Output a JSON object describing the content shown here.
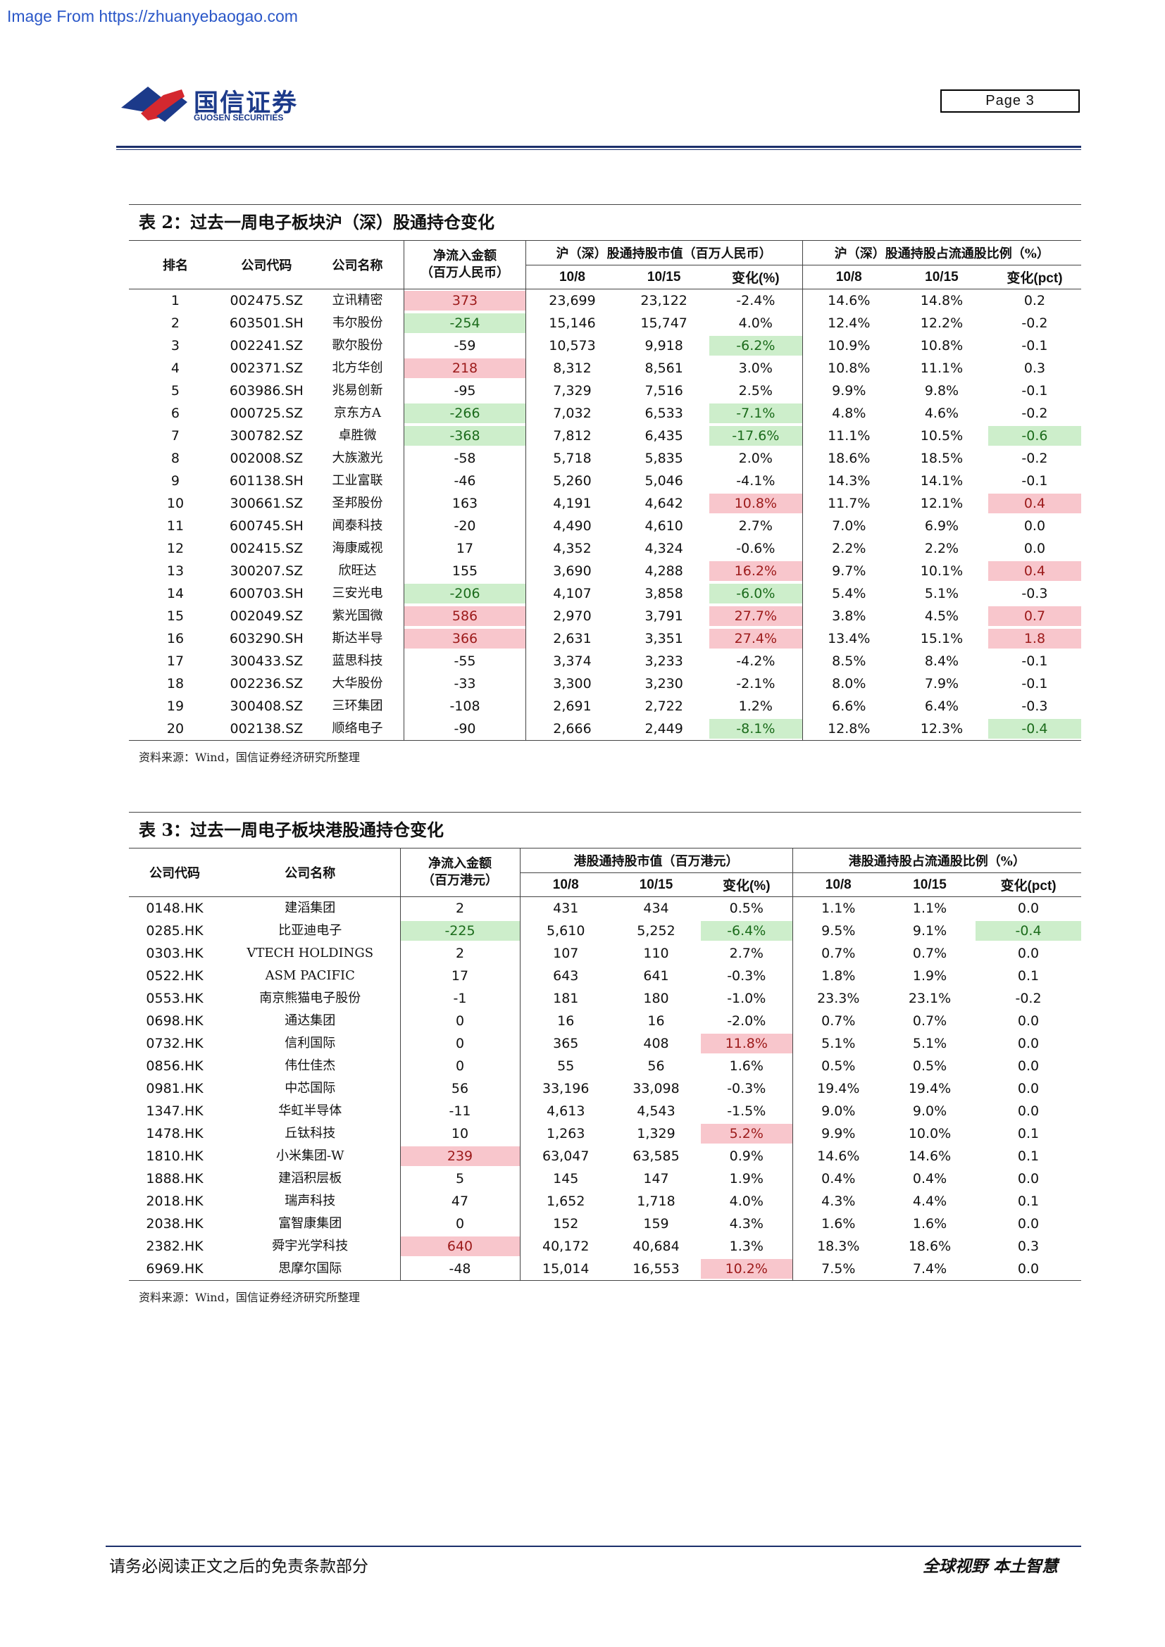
{
  "source_url": "Image From https://zhuanyebaogao.com",
  "brand": {
    "name_cn": "国信证券",
    "name_en": "GUOSEN SECURITIES"
  },
  "page_label": "Page  3",
  "table2": {
    "title": "表 2：过去一周电子板块沪（深）股通持仓变化",
    "headers": {
      "rank": "排名",
      "code": "公司代码",
      "name": "公司名称",
      "flow": "净流入金额\n（百万人民币）",
      "mv_group": "沪（深）股通持股市值（百万人民币）",
      "ratio_group": "沪（深）股通持股占流通股比例（%）",
      "d1": "10/8",
      "d2": "10/15",
      "chg_pct": "变化(%)",
      "chg_pct2": "变化(pct)"
    },
    "rows": [
      {
        "rank": "1",
        "code": "002475.SZ",
        "name": "立讯精密",
        "flow": "373",
        "mv1": "23,699",
        "mv2": "23,122",
        "mvchg": "-2.4%",
        "r1": "14.6%",
        "r2": "14.8%",
        "rchg": "0.2",
        "flow_hl": "pos",
        "mv_hl": "",
        "r_hl": ""
      },
      {
        "rank": "2",
        "code": "603501.SH",
        "name": "韦尔股份",
        "flow": "-254",
        "mv1": "15,146",
        "mv2": "15,747",
        "mvchg": "4.0%",
        "r1": "12.4%",
        "r2": "12.2%",
        "rchg": "-0.2",
        "flow_hl": "neg",
        "mv_hl": "",
        "r_hl": ""
      },
      {
        "rank": "3",
        "code": "002241.SZ",
        "name": "歌尔股份",
        "flow": "-59",
        "mv1": "10,573",
        "mv2": "9,918",
        "mvchg": "-6.2%",
        "r1": "10.9%",
        "r2": "10.8%",
        "rchg": "-0.1",
        "flow_hl": "",
        "mv_hl": "neg",
        "r_hl": ""
      },
      {
        "rank": "4",
        "code": "002371.SZ",
        "name": "北方华创",
        "flow": "218",
        "mv1": "8,312",
        "mv2": "8,561",
        "mvchg": "3.0%",
        "r1": "10.8%",
        "r2": "11.1%",
        "rchg": "0.3",
        "flow_hl": "pos",
        "mv_hl": "",
        "r_hl": ""
      },
      {
        "rank": "5",
        "code": "603986.SH",
        "name": "兆易创新",
        "flow": "-95",
        "mv1": "7,329",
        "mv2": "7,516",
        "mvchg": "2.5%",
        "r1": "9.9%",
        "r2": "9.8%",
        "rchg": "-0.1",
        "flow_hl": "",
        "mv_hl": "",
        "r_hl": ""
      },
      {
        "rank": "6",
        "code": "000725.SZ",
        "name": "京东方A",
        "flow": "-266",
        "mv1": "7,032",
        "mv2": "6,533",
        "mvchg": "-7.1%",
        "r1": "4.8%",
        "r2": "4.6%",
        "rchg": "-0.2",
        "flow_hl": "neg",
        "mv_hl": "neg",
        "r_hl": ""
      },
      {
        "rank": "7",
        "code": "300782.SZ",
        "name": "卓胜微",
        "flow": "-368",
        "mv1": "7,812",
        "mv2": "6,435",
        "mvchg": "-17.6%",
        "r1": "11.1%",
        "r2": "10.5%",
        "rchg": "-0.6",
        "flow_hl": "neg",
        "mv_hl": "neg",
        "r_hl": "neg"
      },
      {
        "rank": "8",
        "code": "002008.SZ",
        "name": "大族激光",
        "flow": "-58",
        "mv1": "5,718",
        "mv2": "5,835",
        "mvchg": "2.0%",
        "r1": "18.6%",
        "r2": "18.5%",
        "rchg": "-0.2",
        "flow_hl": "",
        "mv_hl": "",
        "r_hl": ""
      },
      {
        "rank": "9",
        "code": "601138.SH",
        "name": "工业富联",
        "flow": "-46",
        "mv1": "5,260",
        "mv2": "5,046",
        "mvchg": "-4.1%",
        "r1": "14.3%",
        "r2": "14.1%",
        "rchg": "-0.1",
        "flow_hl": "",
        "mv_hl": "",
        "r_hl": ""
      },
      {
        "rank": "10",
        "code": "300661.SZ",
        "name": "圣邦股份",
        "flow": "163",
        "mv1": "4,191",
        "mv2": "4,642",
        "mvchg": "10.8%",
        "r1": "11.7%",
        "r2": "12.1%",
        "rchg": "0.4",
        "flow_hl": "",
        "mv_hl": "pos",
        "r_hl": "pos"
      },
      {
        "rank": "11",
        "code": "600745.SH",
        "name": "闻泰科技",
        "flow": "-20",
        "mv1": "4,490",
        "mv2": "4,610",
        "mvchg": "2.7%",
        "r1": "7.0%",
        "r2": "6.9%",
        "rchg": "0.0",
        "flow_hl": "",
        "mv_hl": "",
        "r_hl": ""
      },
      {
        "rank": "12",
        "code": "002415.SZ",
        "name": "海康威视",
        "flow": "17",
        "mv1": "4,352",
        "mv2": "4,324",
        "mvchg": "-0.6%",
        "r1": "2.2%",
        "r2": "2.2%",
        "rchg": "0.0",
        "flow_hl": "",
        "mv_hl": "",
        "r_hl": ""
      },
      {
        "rank": "13",
        "code": "300207.SZ",
        "name": "欣旺达",
        "flow": "155",
        "mv1": "3,690",
        "mv2": "4,288",
        "mvchg": "16.2%",
        "r1": "9.7%",
        "r2": "10.1%",
        "rchg": "0.4",
        "flow_hl": "",
        "mv_hl": "pos",
        "r_hl": "pos"
      },
      {
        "rank": "14",
        "code": "600703.SH",
        "name": "三安光电",
        "flow": "-206",
        "mv1": "4,107",
        "mv2": "3,858",
        "mvchg": "-6.0%",
        "r1": "5.4%",
        "r2": "5.1%",
        "rchg": "-0.3",
        "flow_hl": "neg",
        "mv_hl": "neg",
        "r_hl": ""
      },
      {
        "rank": "15",
        "code": "002049.SZ",
        "name": "紫光国微",
        "flow": "586",
        "mv1": "2,970",
        "mv2": "3,791",
        "mvchg": "27.7%",
        "r1": "3.8%",
        "r2": "4.5%",
        "rchg": "0.7",
        "flow_hl": "pos",
        "mv_hl": "pos",
        "r_hl": "pos"
      },
      {
        "rank": "16",
        "code": "603290.SH",
        "name": "斯达半导",
        "flow": "366",
        "mv1": "2,631",
        "mv2": "3,351",
        "mvchg": "27.4%",
        "r1": "13.4%",
        "r2": "15.1%",
        "rchg": "1.8",
        "flow_hl": "pos",
        "mv_hl": "pos",
        "r_hl": "pos"
      },
      {
        "rank": "17",
        "code": "300433.SZ",
        "name": "蓝思科技",
        "flow": "-55",
        "mv1": "3,374",
        "mv2": "3,233",
        "mvchg": "-4.2%",
        "r1": "8.5%",
        "r2": "8.4%",
        "rchg": "-0.1",
        "flow_hl": "",
        "mv_hl": "",
        "r_hl": ""
      },
      {
        "rank": "18",
        "code": "002236.SZ",
        "name": "大华股份",
        "flow": "-33",
        "mv1": "3,300",
        "mv2": "3,230",
        "mvchg": "-2.1%",
        "r1": "8.0%",
        "r2": "7.9%",
        "rchg": "-0.1",
        "flow_hl": "",
        "mv_hl": "",
        "r_hl": ""
      },
      {
        "rank": "19",
        "code": "300408.SZ",
        "name": "三环集团",
        "flow": "-108",
        "mv1": "2,691",
        "mv2": "2,722",
        "mvchg": "1.2%",
        "r1": "6.6%",
        "r2": "6.4%",
        "rchg": "-0.3",
        "flow_hl": "",
        "mv_hl": "",
        "r_hl": ""
      },
      {
        "rank": "20",
        "code": "002138.SZ",
        "name": "顺络电子",
        "flow": "-90",
        "mv1": "2,666",
        "mv2": "2,449",
        "mvchg": "-8.1%",
        "r1": "12.8%",
        "r2": "12.3%",
        "rchg": "-0.4",
        "flow_hl": "",
        "mv_hl": "neg",
        "r_hl": "neg"
      }
    ],
    "source": "资料来源：Wind，国信证券经济研究所整理"
  },
  "table3": {
    "title": "表 3：过去一周电子板块港股通持仓变化",
    "headers": {
      "code": "公司代码",
      "name": "公司名称",
      "flow": "净流入金额\n（百万港元）",
      "mv_group": "港股通持股市值（百万港元）",
      "ratio_group": "港股通持股占流通股比例（%）",
      "d1": "10/8",
      "d2": "10/15",
      "chg_pct": "变化(%)",
      "chg_pct2": "变化(pct)"
    },
    "rows": [
      {
        "code": "0148.HK",
        "name": "建滔集团",
        "flow": "2",
        "mv1": "431",
        "mv2": "434",
        "mvchg": "0.5%",
        "r1": "1.1%",
        "r2": "1.1%",
        "rchg": "0.0",
        "flow_hl": "",
        "mv_hl": "",
        "r_hl": ""
      },
      {
        "code": "0285.HK",
        "name": "比亚迪电子",
        "flow": "-225",
        "mv1": "5,610",
        "mv2": "5,252",
        "mvchg": "-6.4%",
        "r1": "9.5%",
        "r2": "9.1%",
        "rchg": "-0.4",
        "flow_hl": "neg",
        "mv_hl": "neg",
        "r_hl": "neg"
      },
      {
        "code": "0303.HK",
        "name": "VTECH HOLDINGS",
        "flow": "2",
        "mv1": "107",
        "mv2": "110",
        "mvchg": "2.7%",
        "r1": "0.7%",
        "r2": "0.7%",
        "rchg": "0.0",
        "flow_hl": "",
        "mv_hl": "",
        "r_hl": ""
      },
      {
        "code": "0522.HK",
        "name": "ASM PACIFIC",
        "flow": "17",
        "mv1": "643",
        "mv2": "641",
        "mvchg": "-0.3%",
        "r1": "1.8%",
        "r2": "1.9%",
        "rchg": "0.1",
        "flow_hl": "",
        "mv_hl": "",
        "r_hl": ""
      },
      {
        "code": "0553.HK",
        "name": "南京熊猫电子股份",
        "flow": "-1",
        "mv1": "181",
        "mv2": "180",
        "mvchg": "-1.0%",
        "r1": "23.3%",
        "r2": "23.1%",
        "rchg": "-0.2",
        "flow_hl": "",
        "mv_hl": "",
        "r_hl": ""
      },
      {
        "code": "0698.HK",
        "name": "通达集团",
        "flow": "0",
        "mv1": "16",
        "mv2": "16",
        "mvchg": "-2.0%",
        "r1": "0.7%",
        "r2": "0.7%",
        "rchg": "0.0",
        "flow_hl": "",
        "mv_hl": "",
        "r_hl": ""
      },
      {
        "code": "0732.HK",
        "name": "信利国际",
        "flow": "0",
        "mv1": "365",
        "mv2": "408",
        "mvchg": "11.8%",
        "r1": "5.1%",
        "r2": "5.1%",
        "rchg": "0.0",
        "flow_hl": "",
        "mv_hl": "pos",
        "r_hl": ""
      },
      {
        "code": "0856.HK",
        "name": "伟仕佳杰",
        "flow": "0",
        "mv1": "55",
        "mv2": "56",
        "mvchg": "1.6%",
        "r1": "0.5%",
        "r2": "0.5%",
        "rchg": "0.0",
        "flow_hl": "",
        "mv_hl": "",
        "r_hl": ""
      },
      {
        "code": "0981.HK",
        "name": "中芯国际",
        "flow": "56",
        "mv1": "33,196",
        "mv2": "33,098",
        "mvchg": "-0.3%",
        "r1": "19.4%",
        "r2": "19.4%",
        "rchg": "0.0",
        "flow_hl": "",
        "mv_hl": "",
        "r_hl": ""
      },
      {
        "code": "1347.HK",
        "name": "华虹半导体",
        "flow": "-11",
        "mv1": "4,613",
        "mv2": "4,543",
        "mvchg": "-1.5%",
        "r1": "9.0%",
        "r2": "9.0%",
        "rchg": "0.0",
        "flow_hl": "",
        "mv_hl": "",
        "r_hl": ""
      },
      {
        "code": "1478.HK",
        "name": "丘钛科技",
        "flow": "10",
        "mv1": "1,263",
        "mv2": "1,329",
        "mvchg": "5.2%",
        "r1": "9.9%",
        "r2": "10.0%",
        "rchg": "0.1",
        "flow_hl": "",
        "mv_hl": "pos",
        "r_hl": ""
      },
      {
        "code": "1810.HK",
        "name": "小米集团-W",
        "flow": "239",
        "mv1": "63,047",
        "mv2": "63,585",
        "mvchg": "0.9%",
        "r1": "14.6%",
        "r2": "14.6%",
        "rchg": "0.1",
        "flow_hl": "pos",
        "mv_hl": "",
        "r_hl": ""
      },
      {
        "code": "1888.HK",
        "name": "建滔积层板",
        "flow": "5",
        "mv1": "145",
        "mv2": "147",
        "mvchg": "1.9%",
        "r1": "0.4%",
        "r2": "0.4%",
        "rchg": "0.0",
        "flow_hl": "",
        "mv_hl": "",
        "r_hl": ""
      },
      {
        "code": "2018.HK",
        "name": "瑞声科技",
        "flow": "47",
        "mv1": "1,652",
        "mv2": "1,718",
        "mvchg": "4.0%",
        "r1": "4.3%",
        "r2": "4.4%",
        "rchg": "0.1",
        "flow_hl": "",
        "mv_hl": "",
        "r_hl": ""
      },
      {
        "code": "2038.HK",
        "name": "富智康集团",
        "flow": "0",
        "mv1": "152",
        "mv2": "159",
        "mvchg": "4.3%",
        "r1": "1.6%",
        "r2": "1.6%",
        "rchg": "0.0",
        "flow_hl": "",
        "mv_hl": "",
        "r_hl": ""
      },
      {
        "code": "2382.HK",
        "name": "舜宇光学科技",
        "flow": "640",
        "mv1": "40,172",
        "mv2": "40,684",
        "mvchg": "1.3%",
        "r1": "18.3%",
        "r2": "18.6%",
        "rchg": "0.3",
        "flow_hl": "pos",
        "mv_hl": "",
        "r_hl": ""
      },
      {
        "code": "6969.HK",
        "name": "思摩尔国际",
        "flow": "-48",
        "mv1": "15,014",
        "mv2": "16,553",
        "mvchg": "10.2%",
        "r1": "7.5%",
        "r2": "7.4%",
        "rchg": "0.0",
        "flow_hl": "",
        "mv_hl": "pos",
        "r_hl": ""
      }
    ],
    "source": "资料来源：Wind，国信证券经济研究所整理"
  },
  "footer": {
    "disclaimer": "请务必阅读正文之后的免责条款部分",
    "slogan": "全球视野  本土智慧"
  },
  "colors": {
    "positive_highlight": "#f8c6cc",
    "negative_highlight": "#cdeecb",
    "brand_navy": "#1c2f6b",
    "brand_red": "#d4282f"
  }
}
